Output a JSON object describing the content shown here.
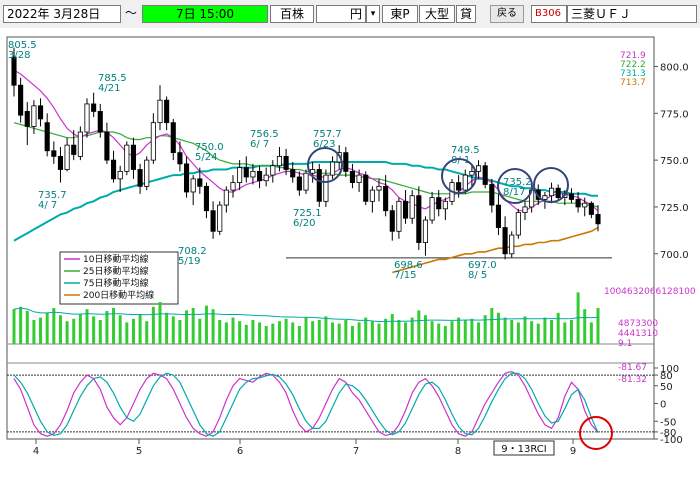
{
  "toolbar": {
    "start_date": "2022年 3月28日",
    "tilde": "～",
    "period": "7日 15:00",
    "unit_label": "百株",
    "currency": "円",
    "dropdown_icon": "▾",
    "market": "東P",
    "size": "大型",
    "margin": "貸",
    "back_button": "戻る",
    "stock_code": "B306",
    "stock_name": "三菱ＵＦＪ"
  },
  "colors": {
    "up_candle": "#ffffff",
    "down_candle": "#000000",
    "ma10": "#cc33cc",
    "ma25": "#33aa33",
    "ma75": "#00aaaa",
    "ma200": "#cc7700",
    "volume": "#33cc33",
    "circle": "#334477",
    "rci9": "#cc33cc",
    "rci13": "#00aaaa",
    "red_circle": "#dd0000"
  },
  "chart_data": [
    {
      "type": "candlestick",
      "panel": "price",
      "ylim": [
        686,
        812
      ],
      "yticks": [
        "800.0",
        "775.0",
        "750.0",
        "725.0",
        "700.0"
      ],
      "x_month_labels": [
        "4",
        "5",
        "6",
        "7",
        "8",
        "9"
      ],
      "price_readout": [
        "721.9",
        "722.2",
        "731.3",
        "713.7"
      ],
      "legend": [
        {
          "name": "10日移動平均線",
          "color": "#cc33cc"
        },
        {
          "name": "25日移動平均線",
          "color": "#33aa33"
        },
        {
          "name": "75日移動平均線",
          "color": "#00aaaa"
        },
        {
          "name": "200日移動平均線",
          "color": "#cc7700"
        }
      ],
      "annotations": [
        {
          "price": "805.5",
          "date": "3/28"
        },
        {
          "price": "785.5",
          "date": "4/21"
        },
        {
          "price": "735.7",
          "date": "4/ 7"
        },
        {
          "price": "750.0",
          "date": "5/24"
        },
        {
          "price": "708.2",
          "date": "5/19"
        },
        {
          "price": "756.5",
          "date": "6/ 7"
        },
        {
          "price": "757.7",
          "date": "6/23"
        },
        {
          "price": "725.1",
          "date": "6/20"
        },
        {
          "price": "698.6",
          "date": "7/15"
        },
        {
          "price": "749.5",
          "date": "8/ 1"
        },
        {
          "price": "697.0",
          "date": "8/ 5"
        },
        {
          "price": "735.2",
          "date": "8/17"
        }
      ],
      "support_line": 697.8,
      "candles": [
        [
          805,
          810,
          784,
          790
        ],
        [
          790,
          794,
          770,
          774
        ],
        [
          776,
          781,
          758,
          768
        ],
        [
          768,
          782,
          764,
          779
        ],
        [
          779,
          783,
          768,
          772
        ],
        [
          770,
          775,
          752,
          755
        ],
        [
          755,
          760,
          748,
          752
        ],
        [
          752,
          757,
          738,
          745
        ],
        [
          745,
          762,
          744,
          758
        ],
        [
          758,
          766,
          750,
          753
        ],
        [
          752,
          768,
          750,
          765
        ],
        [
          765,
          783,
          762,
          780
        ],
        [
          780,
          786,
          773,
          776
        ],
        [
          776,
          780,
          762,
          765
        ],
        [
          765,
          770,
          748,
          750
        ],
        [
          750,
          755,
          738,
          740
        ],
        [
          740,
          747,
          733,
          744
        ],
        [
          744,
          760,
          742,
          758
        ],
        [
          758,
          762,
          740,
          745
        ],
        [
          745,
          748,
          732,
          736
        ],
        [
          736,
          752,
          734,
          750
        ],
        [
          750,
          775,
          748,
          770
        ],
        [
          770,
          790,
          766,
          782
        ],
        [
          782,
          784,
          766,
          770
        ],
        [
          770,
          772,
          750,
          754
        ],
        [
          754,
          760,
          744,
          748
        ],
        [
          748,
          752,
          730,
          733
        ],
        [
          733,
          742,
          726,
          740
        ],
        [
          740,
          746,
          732,
          736
        ],
        [
          736,
          738,
          719,
          723
        ],
        [
          723,
          728,
          708,
          712
        ],
        [
          712,
          728,
          710,
          726
        ],
        [
          726,
          736,
          722,
          734
        ],
        [
          734,
          742,
          730,
          738
        ],
        [
          738,
          750,
          734,
          746
        ],
        [
          746,
          752,
          738,
          741
        ],
        [
          741,
          748,
          737,
          744
        ],
        [
          744,
          747,
          735,
          739
        ],
        [
          739,
          746,
          736,
          742
        ],
        [
          742,
          750,
          738,
          747
        ],
        [
          747,
          757,
          744,
          752
        ],
        [
          752,
          756,
          742,
          745
        ],
        [
          745,
          749,
          738,
          741
        ],
        [
          741,
          744,
          731,
          734
        ],
        [
          734,
          745,
          732,
          743
        ],
        [
          743,
          749,
          738,
          745
        ],
        [
          745,
          748,
          725,
          728
        ],
        [
          728,
          745,
          725,
          742
        ],
        [
          742,
          752,
          740,
          749
        ],
        [
          749,
          758,
          745,
          754
        ],
        [
          754,
          757,
          741,
          744
        ],
        [
          744,
          748,
          735,
          738
        ],
        [
          738,
          745,
          733,
          742
        ],
        [
          742,
          744,
          726,
          728
        ],
        [
          728,
          736,
          722,
          734
        ],
        [
          734,
          740,
          728,
          736
        ],
        [
          736,
          742,
          720,
          723
        ],
        [
          723,
          726,
          707,
          712
        ],
        [
          712,
          730,
          708,
          728
        ],
        [
          728,
          734,
          716,
          719
        ],
        [
          719,
          734,
          716,
          731
        ],
        [
          731,
          736,
          702,
          706
        ],
        [
          706,
          720,
          699,
          718
        ],
        [
          718,
          733,
          716,
          730
        ],
        [
          730,
          734,
          720,
          724
        ],
        [
          724,
          730,
          718,
          728
        ],
        [
          728,
          740,
          726,
          738
        ],
        [
          738,
          742,
          730,
          734
        ],
        [
          734,
          745,
          732,
          742
        ],
        [
          742,
          748,
          736,
          744
        ],
        [
          744,
          750,
          740,
          747
        ],
        [
          747,
          749,
          735,
          737
        ],
        [
          737,
          740,
          722,
          726
        ],
        [
          726,
          732,
          710,
          714
        ],
        [
          714,
          720,
          697,
          700
        ],
        [
          700,
          712,
          698,
          710
        ],
        [
          710,
          724,
          708,
          722
        ],
        [
          722,
          728,
          718,
          725
        ],
        [
          725,
          736,
          722,
          734
        ],
        [
          734,
          737,
          726,
          729
        ],
        [
          729,
          733,
          724,
          731
        ],
        [
          731,
          738,
          727,
          735
        ],
        [
          735,
          737,
          728,
          730
        ],
        [
          730,
          734,
          726,
          732
        ],
        [
          732,
          735,
          727,
          729
        ],
        [
          729,
          733,
          722,
          725
        ],
        [
          725,
          730,
          720,
          727
        ],
        [
          727,
          728,
          719,
          721
        ],
        [
          721,
          726,
          712,
          716
        ]
      ],
      "ma10": [
        798,
        796,
        793,
        790,
        787,
        783,
        778,
        772,
        767,
        764,
        762,
        764,
        765,
        766,
        765,
        762,
        758,
        754,
        752,
        754,
        758,
        761,
        763,
        764,
        762,
        758,
        752,
        748,
        744,
        741,
        738,
        735,
        733,
        733,
        735,
        737,
        738,
        739,
        740,
        742,
        743,
        744,
        744,
        743,
        742,
        742,
        741,
        741,
        743,
        745,
        746,
        745,
        743,
        742,
        740,
        738,
        737,
        734,
        730,
        728,
        727,
        725,
        724,
        726,
        728,
        729,
        731,
        733,
        736,
        739,
        741,
        740,
        738,
        734,
        729,
        726,
        723,
        723,
        725,
        727,
        729,
        731,
        732,
        732,
        731,
        730,
        728,
        726,
        723
      ],
      "ma25": [
        770,
        769,
        768,
        767,
        766,
        765,
        764,
        763,
        762,
        762,
        763,
        763,
        764,
        765,
        765,
        765,
        764,
        762,
        761,
        761,
        762,
        762,
        763,
        763,
        762,
        761,
        760,
        759,
        757,
        755,
        752,
        750,
        749,
        748,
        748,
        748,
        747,
        747,
        747,
        747,
        746,
        746,
        745,
        745,
        744,
        744,
        743,
        743,
        743,
        742,
        742,
        742,
        741,
        741,
        740,
        740,
        739,
        738,
        737,
        736,
        735,
        734,
        733,
        732,
        732,
        732,
        732,
        732,
        732,
        733,
        733,
        733,
        733,
        732,
        731,
        730,
        729,
        728,
        728,
        728,
        728,
        728,
        727,
        727,
        727,
        727,
        726,
        726,
        725
      ],
      "ma75": [
        707,
        709,
        711,
        713,
        715,
        717,
        719,
        721,
        722,
        724,
        725,
        727,
        728,
        730,
        731,
        733,
        734,
        735,
        736,
        737,
        738,
        739,
        740,
        741,
        742,
        742,
        743,
        743,
        744,
        744,
        745,
        745,
        745,
        746,
        746,
        746,
        746,
        747,
        747,
        747,
        747,
        748,
        748,
        748,
        748,
        749,
        749,
        749,
        749,
        749,
        749,
        749,
        749,
        749,
        749,
        749,
        749,
        748,
        748,
        748,
        747,
        747,
        746,
        746,
        745,
        745,
        744,
        743,
        742,
        741,
        740,
        740,
        739,
        738,
        737,
        736,
        736,
        735,
        735,
        734,
        734,
        733,
        733,
        733,
        732,
        732,
        732,
        731,
        731
      ],
      "ma200": [
        null,
        null,
        null,
        null,
        null,
        null,
        null,
        null,
        null,
        null,
        null,
        null,
        null,
        null,
        null,
        null,
        null,
        null,
        null,
        null,
        null,
        null,
        null,
        null,
        null,
        null,
        null,
        null,
        null,
        null,
        null,
        null,
        null,
        null,
        null,
        null,
        null,
        null,
        null,
        null,
        null,
        null,
        null,
        null,
        null,
        null,
        null,
        null,
        null,
        null,
        null,
        null,
        null,
        null,
        null,
        null,
        null,
        690,
        691,
        692,
        693,
        694,
        695,
        696,
        697,
        697,
        698,
        699,
        700,
        700,
        701,
        701,
        702,
        703,
        703,
        704,
        704,
        705,
        705,
        706,
        706,
        707,
        707,
        708,
        709,
        710,
        711,
        712,
        714
      ]
    },
    {
      "type": "bar",
      "panel": "volume",
      "legend_values": [
        "1004632066128100",
        "4873300",
        "4441310",
        "9.1"
      ],
      "values": [
        58,
        62,
        55,
        40,
        44,
        52,
        60,
        48,
        38,
        42,
        50,
        58,
        46,
        40,
        55,
        60,
        48,
        36,
        42,
        50,
        38,
        62,
        70,
        52,
        46,
        40,
        56,
        60,
        42,
        64,
        58,
        40,
        36,
        44,
        38,
        32,
        40,
        36,
        30,
        34,
        38,
        42,
        36,
        30,
        44,
        38,
        40,
        46,
        36,
        34,
        40,
        30,
        36,
        44,
        38,
        34,
        42,
        50,
        40,
        36,
        44,
        56,
        48,
        38,
        34,
        30,
        38,
        44,
        40,
        42,
        36,
        48,
        60,
        52,
        44,
        40,
        36,
        46,
        38,
        34,
        44,
        40,
        52,
        36,
        40,
        86,
        58,
        36,
        60
      ]
    },
    {
      "type": "line",
      "panel": "rci",
      "title": "9・13RCI",
      "ylim": [
        -100,
        100
      ],
      "yticks": [
        "100",
        "80",
        "50",
        "0",
        "-50",
        "-80",
        "-100"
      ],
      "readout": [
        "-81.67",
        "-81.32"
      ],
      "series": [
        {
          "name": "9",
          "values": [
            70,
            40,
            -10,
            -60,
            -85,
            -92,
            -85,
            -60,
            -20,
            30,
            60,
            80,
            70,
            40,
            -10,
            -40,
            -60,
            -40,
            0,
            40,
            70,
            85,
            80,
            70,
            40,
            0,
            -40,
            -70,
            -85,
            -92,
            -80,
            -40,
            10,
            50,
            70,
            65,
            60,
            75,
            85,
            80,
            60,
            30,
            -20,
            -60,
            -80,
            -70,
            -40,
            0,
            40,
            70,
            60,
            30,
            10,
            -20,
            -50,
            -80,
            -90,
            -85,
            -60,
            -20,
            30,
            60,
            70,
            50,
            20,
            -20,
            -60,
            -85,
            -92,
            -80,
            -40,
            0,
            30,
            60,
            85,
            90,
            80,
            50,
            10,
            -30,
            -60,
            -70,
            -40,
            20,
            60,
            40,
            -20,
            -60,
            -81
          ]
        },
        {
          "name": "13",
          "values": [
            80,
            60,
            30,
            -10,
            -50,
            -80,
            -90,
            -85,
            -60,
            -20,
            20,
            50,
            70,
            75,
            60,
            30,
            -10,
            -40,
            -50,
            -30,
            10,
            50,
            75,
            85,
            80,
            60,
            20,
            -20,
            -60,
            -85,
            -92,
            -80,
            -40,
            0,
            40,
            60,
            70,
            72,
            78,
            82,
            75,
            55,
            25,
            -15,
            -50,
            -70,
            -70,
            -50,
            -10,
            30,
            55,
            50,
            35,
            10,
            -20,
            -50,
            -75,
            -88,
            -80,
            -55,
            -15,
            25,
            55,
            60,
            45,
            10,
            -30,
            -65,
            -85,
            -88,
            -70,
            -35,
            5,
            40,
            70,
            85,
            85,
            70,
            40,
            0,
            -35,
            -55,
            -50,
            -15,
            25,
            40,
            10,
            -40,
            -82
          ]
        }
      ]
    }
  ]
}
